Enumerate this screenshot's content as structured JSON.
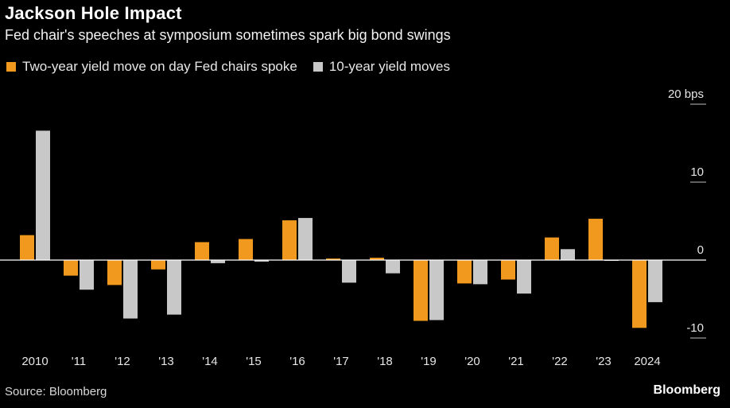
{
  "title": "Jackson Hole Impact",
  "subtitle": "Fed chair's speeches at symposium sometimes spark big bond swings",
  "legend": [
    {
      "label": "Two-year yield move on day Fed chairs spoke",
      "color": "#f0991e"
    },
    {
      "label": "10-year yield moves",
      "color": "#c8c8c8"
    }
  ],
  "source": "Source: Bloomberg",
  "brand": "Bloomberg",
  "colors": {
    "background": "#000000",
    "two_year": "#f0991e",
    "ten_year": "#c8c8c8",
    "axis": "#ffffff",
    "text": "#e6e6e6"
  },
  "chart_data": {
    "type": "bar",
    "title": "Jackson Hole Impact",
    "xlabel": "",
    "ylabel": "bps",
    "ylim": [
      -11,
      21
    ],
    "yticks": [
      20,
      10,
      0,
      -10
    ],
    "ytick_labels": [
      "20 bps",
      "10",
      "0",
      "-10"
    ],
    "categories": [
      "2010",
      "'11",
      "'12",
      "'13",
      "'14",
      "'15",
      "'16",
      "'17",
      "'18",
      "'19",
      "'20",
      "'21",
      "'22",
      "'23",
      "2024"
    ],
    "series": [
      {
        "name": "Two-year yield move on day Fed chairs spoke",
        "values": [
          3.2,
          -2.0,
          -3.2,
          -1.2,
          2.3,
          2.7,
          5.1,
          0.2,
          0.3,
          -7.8,
          -3.0,
          -2.5,
          2.9,
          5.3,
          -8.7
        ]
      },
      {
        "name": "10-year yield moves",
        "values": [
          16.6,
          -3.8,
          -7.5,
          -7.0,
          -0.4,
          -0.2,
          5.4,
          -2.9,
          -1.7,
          -7.7,
          -3.1,
          -4.3,
          1.4,
          0.0,
          -5.4
        ]
      }
    ]
  }
}
